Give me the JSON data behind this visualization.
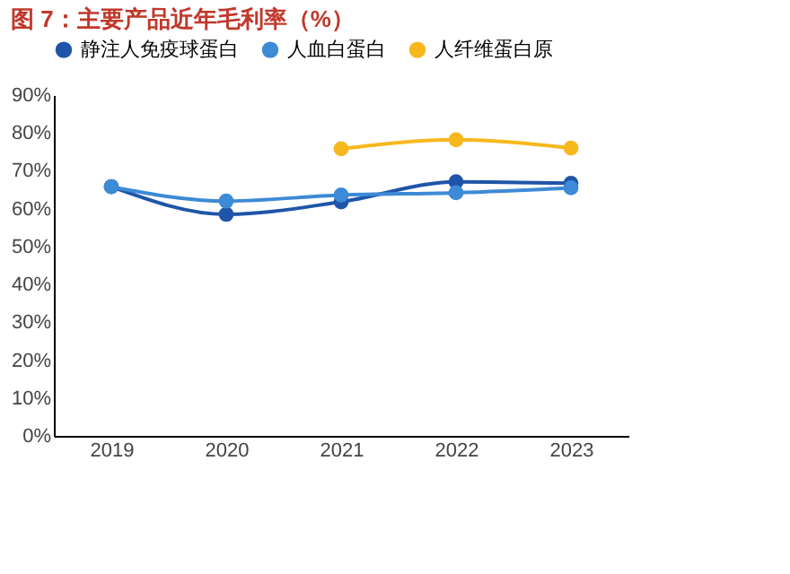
{
  "chart_data": {
    "type": "line",
    "title": "图 7：主要产品近年毛利率（%）",
    "categories": [
      "2019",
      "2020",
      "2021",
      "2022",
      "2023"
    ],
    "series": [
      {
        "name": "静注人免疫球蛋白",
        "color": "#1f55a8",
        "values": [
          65.8,
          58.5,
          61.8,
          67.1,
          66.7
        ]
      },
      {
        "name": "人血白蛋白",
        "color": "#3d8ad6",
        "values": [
          65.8,
          62.0,
          63.6,
          64.2,
          65.5
        ]
      },
      {
        "name": "人纤维蛋白原",
        "color": "#f7b81d",
        "values": [
          null,
          null,
          75.8,
          78.2,
          76.0
        ]
      }
    ],
    "ylim": [
      0,
      90
    ],
    "yticks": [
      {
        "value": 0,
        "label": "0%"
      },
      {
        "value": 10,
        "label": "10%"
      },
      {
        "value": 20,
        "label": "20%"
      },
      {
        "value": 30,
        "label": "30%"
      },
      {
        "value": 40,
        "label": "40%"
      },
      {
        "value": 50,
        "label": "50%"
      },
      {
        "value": 60,
        "label": "60%"
      },
      {
        "value": 70,
        "label": "70%"
      },
      {
        "value": 80,
        "label": "80%"
      },
      {
        "value": 90,
        "label": "90%"
      }
    ],
    "grid": false,
    "legend": "top",
    "marker": "circle",
    "line_style": "solid"
  }
}
